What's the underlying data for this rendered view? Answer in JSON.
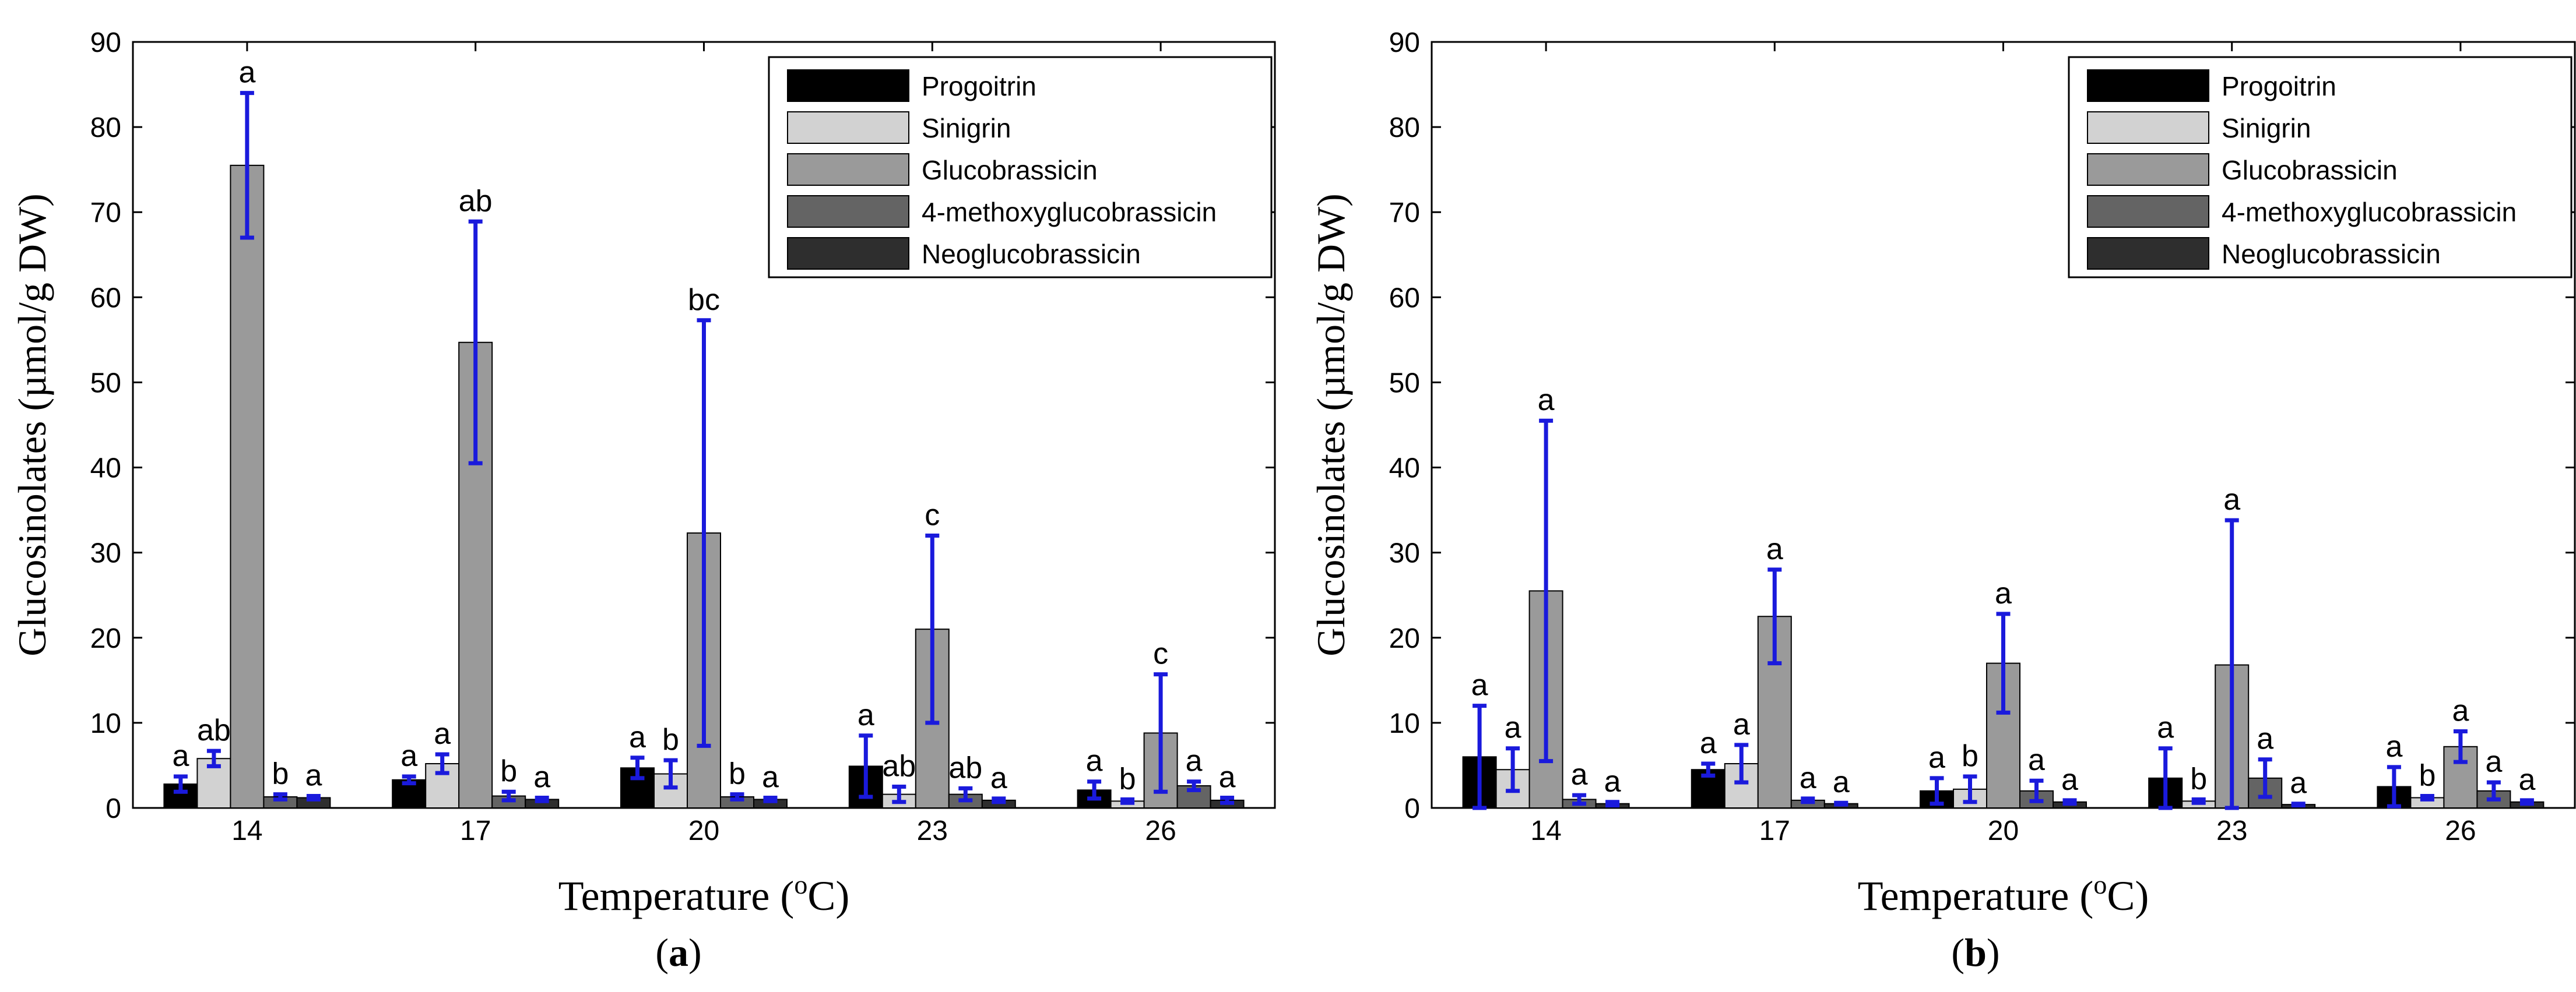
{
  "colors": {
    "error_bar": "#1a1adc",
    "series": [
      "#000000",
      "#d2d2d2",
      "#9a9a9a",
      "#646464",
      "#2e2e2e"
    ]
  },
  "chart_data": [
    {
      "type": "bar",
      "panel_label": "a",
      "xlabel": "Temperature (",
      "xlabel_sup": "o",
      "xlabel_unit": "C)",
      "ylabel": "Glucosinolates (µmol/g DW)",
      "ylim": [
        0,
        90
      ],
      "yticks": [
        "0",
        "10",
        "20",
        "30",
        "40",
        "50",
        "60",
        "70",
        "80",
        "90"
      ],
      "categories": [
        "14",
        "17",
        "20",
        "23",
        "26"
      ],
      "legend_position": "top-right",
      "series": [
        {
          "name": "Progoitrin",
          "values": [
            2.8,
            3.3,
            4.7,
            4.9,
            2.1
          ],
          "errors": [
            0.9,
            0.4,
            1.2,
            3.6,
            1.0
          ],
          "letters": [
            "a",
            "a",
            "a",
            "a",
            "a"
          ]
        },
        {
          "name": "Sinigrin",
          "values": [
            5.8,
            5.2,
            4.0,
            1.6,
            0.8
          ],
          "errors": [
            0.9,
            1.1,
            1.6,
            0.9,
            0.2
          ],
          "letters": [
            "ab",
            "a",
            "b",
            "ab",
            "b"
          ]
        },
        {
          "name": "Glucobrassicin",
          "values": [
            75.5,
            54.7,
            32.3,
            21.0,
            8.8
          ],
          "errors": [
            8.5,
            14.2,
            25.0,
            11.0,
            6.9
          ],
          "letters": [
            "a",
            "ab",
            "bc",
            "c",
            "c"
          ]
        },
        {
          "name": "4-methoxyglucobrassicin",
          "values": [
            1.3,
            1.4,
            1.3,
            1.6,
            2.6
          ],
          "errors": [
            0.3,
            0.5,
            0.3,
            0.7,
            0.5
          ],
          "letters": [
            "b",
            "b",
            "b",
            "ab",
            "a"
          ]
        },
        {
          "name": "Neoglucobrassicin",
          "values": [
            1.2,
            1.0,
            1.0,
            0.9,
            0.9
          ],
          "errors": [
            0.2,
            0.2,
            0.2,
            0.2,
            0.3
          ],
          "letters": [
            "a",
            "a",
            "a",
            "a",
            "a"
          ]
        }
      ]
    },
    {
      "type": "bar",
      "panel_label": "b",
      "xlabel": "Temperature (",
      "xlabel_sup": "o",
      "xlabel_unit": "C)",
      "ylabel": "Glucosinolates (µmol/g DW)",
      "ylim": [
        0,
        90
      ],
      "yticks": [
        "0",
        "10",
        "20",
        "30",
        "40",
        "50",
        "60",
        "70",
        "80",
        "90"
      ],
      "categories": [
        "14",
        "17",
        "20",
        "23",
        "26"
      ],
      "legend_position": "top-right",
      "series": [
        {
          "name": "Progoitrin",
          "values": [
            6.0,
            4.5,
            2.0,
            3.5,
            2.5
          ],
          "errors": [
            6.0,
            0.7,
            1.5,
            3.5,
            2.3
          ],
          "letters": [
            "a",
            "a",
            "a",
            "a",
            "a"
          ]
        },
        {
          "name": "Sinigrin",
          "values": [
            4.5,
            5.2,
            2.2,
            0.8,
            1.2
          ],
          "errors": [
            2.5,
            2.2,
            1.5,
            0.2,
            0.2
          ],
          "letters": [
            "a",
            "a",
            "b",
            "b",
            "b"
          ]
        },
        {
          "name": "Glucobrassicin",
          "values": [
            25.5,
            22.5,
            17.0,
            16.8,
            7.2
          ],
          "errors": [
            20.0,
            5.5,
            5.8,
            17.0,
            1.8
          ],
          "letters": [
            "a",
            "a",
            "a",
            "a",
            "a"
          ]
        },
        {
          "name": "4-methoxyglucobrassicin",
          "values": [
            1.0,
            0.9,
            2.0,
            3.5,
            2.0
          ],
          "errors": [
            0.5,
            0.2,
            1.2,
            2.2,
            1.0
          ],
          "letters": [
            "a",
            "a",
            "a",
            "a",
            "a"
          ]
        },
        {
          "name": "Neoglucobrassicin",
          "values": [
            0.5,
            0.5,
            0.7,
            0.4,
            0.7
          ],
          "errors": [
            0.2,
            0.1,
            0.2,
            0.1,
            0.2
          ],
          "letters": [
            "a",
            "a",
            "a",
            "a",
            "a"
          ]
        }
      ]
    }
  ]
}
